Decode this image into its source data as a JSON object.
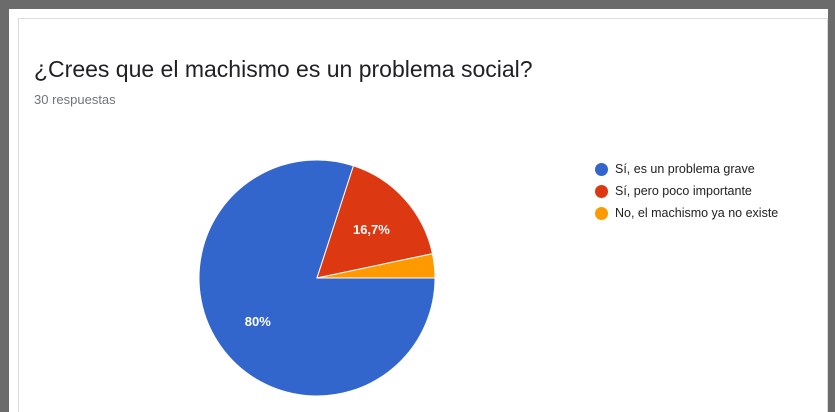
{
  "question": {
    "title": "¿Crees que el machismo es un problema social?",
    "response_count": "30 respuestas"
  },
  "chart_data": {
    "type": "pie",
    "title": "¿Crees que el machismo es un problema social?",
    "subtitle": "30 respuestas",
    "legend_position": "right",
    "slices": [
      {
        "label": "Sí, es un problema grave",
        "value": 80,
        "display_label": "80%",
        "color": "#3366cc"
      },
      {
        "label": "Sí, pero poco importante",
        "value": 16.7,
        "display_label": "16,7%",
        "color": "#dc3912"
      },
      {
        "label": "No, el machismo ya no existe",
        "value": 3.3,
        "display_label": "",
        "color": "#ff9900"
      }
    ]
  }
}
